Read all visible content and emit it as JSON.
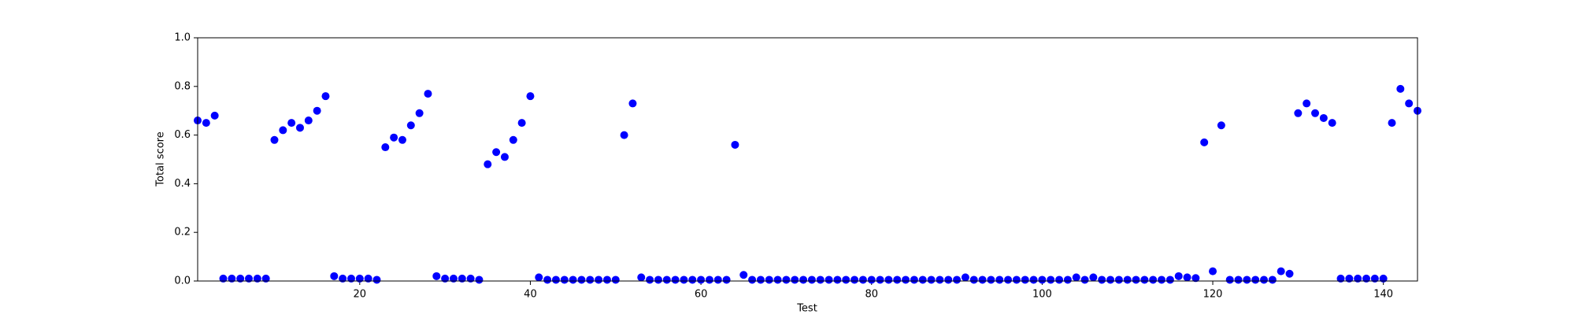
{
  "chart_data": {
    "type": "scatter",
    "xlabel": "Test",
    "ylabel": "Total score",
    "series": [
      {
        "color": "#0000ff",
        "x": [
          1,
          2,
          3,
          4,
          5,
          6,
          7,
          8,
          9,
          10,
          11,
          12,
          13,
          14,
          15,
          16,
          17,
          18,
          19,
          20,
          21,
          22,
          23,
          24,
          25,
          26,
          27,
          28,
          29,
          30,
          31,
          32,
          33,
          34,
          35,
          36,
          37,
          38,
          39,
          40,
          41,
          42,
          43,
          44,
          45,
          46,
          47,
          48,
          49,
          50,
          51,
          52,
          53,
          54,
          55,
          56,
          57,
          58,
          59,
          60,
          61,
          62,
          63,
          64,
          65,
          66,
          67,
          68,
          69,
          70,
          71,
          72,
          73,
          74,
          75,
          76,
          77,
          78,
          79,
          80,
          81,
          82,
          83,
          84,
          85,
          86,
          87,
          88,
          89,
          90,
          91,
          92,
          93,
          94,
          95,
          96,
          97,
          98,
          99,
          100,
          101,
          102,
          103,
          104,
          105,
          106,
          107,
          108,
          109,
          110,
          111,
          112,
          113,
          114,
          115,
          116,
          117,
          118,
          119,
          120,
          121,
          122,
          123,
          124,
          125,
          126,
          127,
          128,
          129,
          130,
          131,
          132,
          133,
          134,
          135,
          136,
          137,
          138,
          139,
          140,
          141,
          142,
          143,
          144
        ],
        "values": [
          0.66,
          0.65,
          0.68,
          0.01,
          0.01,
          0.01,
          0.01,
          0.01,
          0.01,
          0.58,
          0.62,
          0.65,
          0.63,
          0.66,
          0.7,
          0.76,
          0.02,
          0.01,
          0.01,
          0.01,
          0.01,
          0.005,
          0.55,
          0.59,
          0.58,
          0.64,
          0.69,
          0.77,
          0.02,
          0.01,
          0.01,
          0.01,
          0.01,
          0.005,
          0.48,
          0.53,
          0.51,
          0.58,
          0.65,
          0.76,
          0.015,
          0.005,
          0.005,
          0.005,
          0.005,
          0.005,
          0.005,
          0.005,
          0.005,
          0.005,
          0.6,
          0.73,
          0.015,
          0.005,
          0.005,
          0.005,
          0.005,
          0.005,
          0.005,
          0.005,
          0.005,
          0.005,
          0.005,
          0.56,
          0.025,
          0.005,
          0.005,
          0.005,
          0.005,
          0.005,
          0.005,
          0.005,
          0.005,
          0.005,
          0.005,
          0.005,
          0.005,
          0.005,
          0.005,
          0.005,
          0.005,
          0.005,
          0.005,
          0.005,
          0.005,
          0.005,
          0.005,
          0.005,
          0.005,
          0.005,
          0.015,
          0.005,
          0.005,
          0.005,
          0.005,
          0.005,
          0.005,
          0.005,
          0.005,
          0.005,
          0.005,
          0.005,
          0.005,
          0.015,
          0.005,
          0.015,
          0.005,
          0.005,
          0.005,
          0.005,
          0.005,
          0.005,
          0.005,
          0.005,
          0.005,
          0.02,
          0.015,
          0.012,
          0.57,
          0.04,
          0.64,
          0.005,
          0.005,
          0.005,
          0.005,
          0.005,
          0.005,
          0.04,
          0.03,
          0.69,
          0.73,
          0.69,
          0.67,
          0.65,
          0.01,
          0.01,
          0.01,
          0.01,
          0.01,
          0.01,
          0.65,
          0.79,
          0.73,
          0.7
        ]
      }
    ],
    "xlim": [
      1,
      144
    ],
    "xticks": [
      20,
      40,
      60,
      80,
      100,
      120,
      140
    ],
    "ylim": [
      0,
      1
    ],
    "yticks": [
      {
        "value": 0,
        "label": "0.0"
      },
      {
        "value": 0.2,
        "label": "0.2"
      },
      {
        "value": 0.4,
        "label": "0.4"
      },
      {
        "value": 0.6,
        "label": "0.6"
      },
      {
        "value": 0.8,
        "label": "0.8"
      },
      {
        "value": 1,
        "label": "1.0"
      }
    ],
    "grid": false
  }
}
